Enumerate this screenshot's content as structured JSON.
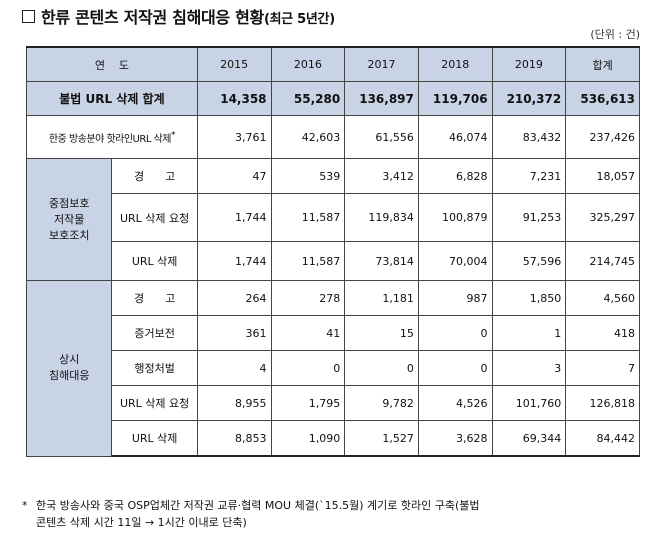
{
  "title": {
    "main": "한류 콘텐츠 저작권 침해대응 현황",
    "sub": "(최근 5년간)"
  },
  "unit": "(단위 : 건)",
  "header": {
    "label": "연    도",
    "years": [
      "2015",
      "2016",
      "2017",
      "2018",
      "2019",
      "합계"
    ]
  },
  "total_row": {
    "label": "불법 URL 삭제 합계",
    "values": [
      "14,358",
      "55,280",
      "136,897",
      "119,706",
      "210,372",
      "536,613"
    ]
  },
  "hotline_row": {
    "label": "한중 방송분야 핫라인URL 삭제",
    "mark": "*",
    "values": [
      "3,761",
      "42,603",
      "61,556",
      "46,074",
      "83,432",
      "237,426"
    ]
  },
  "group1": {
    "label": "중점보호\n저작물\n보호조치",
    "rows": [
      {
        "label": "경      고",
        "values": [
          "47",
          "539",
          "3,412",
          "6,828",
          "7,231",
          "18,057"
        ]
      },
      {
        "label": "URL 삭제 요청",
        "values": [
          "1,744",
          "11,587",
          "119,834",
          "100,879",
          "91,253",
          "325,297"
        ]
      },
      {
        "label": "URL 삭제",
        "values": [
          "1,744",
          "11,587",
          "73,814",
          "70,004",
          "57,596",
          "214,745"
        ]
      }
    ]
  },
  "group2": {
    "label": "상시\n침해대응",
    "rows": [
      {
        "label": "경      고",
        "values": [
          "264",
          "278",
          "1,181",
          "987",
          "1,850",
          "4,560"
        ]
      },
      {
        "label": "증거보전",
        "values": [
          "361",
          "41",
          "15",
          "0",
          "1",
          "418"
        ]
      },
      {
        "label": "행정처벌",
        "values": [
          "4",
          "0",
          "0",
          "0",
          "3",
          "7"
        ]
      },
      {
        "label": "URL 삭제 요청",
        "values": [
          "8,955",
          "1,795",
          "9,782",
          "4,526",
          "101,760",
          "126,818"
        ]
      },
      {
        "label": "URL 삭제",
        "values": [
          "8,853",
          "1,090",
          "1,527",
          "3,628",
          "69,344",
          "84,442"
        ]
      }
    ]
  },
  "footnote": {
    "mark": "*",
    "line1": "한국 방송사와 중국 OSP업체간 저작권 교류·협력 MOU 체결(`15.5월) 계기로 핫라인 구축(불법",
    "line2": "콘텐츠 삭제 시간 11일 → 1시간 이내로 단축)"
  }
}
